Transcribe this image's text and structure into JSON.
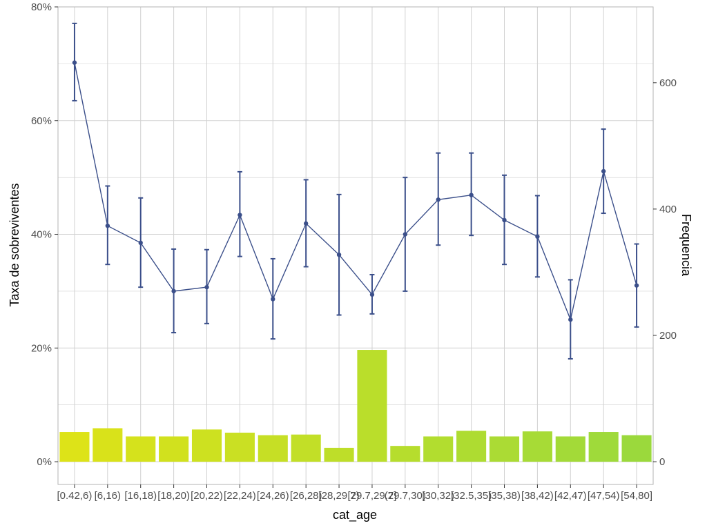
{
  "chart_data": {
    "type": "bar+line",
    "xlabel": "cat_age",
    "ylabel_left": "Taxa de sobreviventes",
    "ylabel_right": "Frequencia",
    "categories": [
      "[0.42,6)",
      "[6,16)",
      "[16,18)",
      "[18,20)",
      "[20,22)",
      "[22,24)",
      "[24,26)",
      "[26,28)",
      "[28,29.7)",
      "[29.7,29.7]",
      "(29.7,30)",
      "[30,32)",
      "[32.5,35)",
      "[35,38)",
      "[38,42)",
      "[42,47)",
      "[47,54)",
      "[54,80]"
    ],
    "left_axis": {
      "ylim": [
        -0.04,
        0.8
      ],
      "ticks": [
        0,
        0.2,
        0.4,
        0.6,
        0.8
      ],
      "tick_labels": [
        "0%",
        "20%",
        "40%",
        "60%",
        "80%"
      ]
    },
    "right_axis": {
      "ylim": [
        -36,
        720
      ],
      "ticks": [
        0,
        200,
        400,
        600
      ],
      "tick_labels": [
        "0",
        "200",
        "400",
        "600"
      ]
    },
    "series": [
      {
        "name": "Frequencia",
        "type": "bar",
        "axis": "right",
        "values": [
          47,
          53,
          40,
          40,
          51,
          46,
          42,
          43,
          22,
          177,
          25,
          40,
          49,
          40,
          48,
          40,
          47,
          42
        ]
      },
      {
        "name": "Taxa de sobreviventes",
        "type": "line",
        "axis": "left",
        "values": [
          0.702,
          0.415,
          0.385,
          0.3,
          0.307,
          0.434,
          0.286,
          0.419,
          0.364,
          0.294,
          0.4,
          0.461,
          0.469,
          0.425,
          0.396,
          0.25,
          0.511,
          0.31
        ],
        "err_low": [
          0.635,
          0.347,
          0.307,
          0.227,
          0.243,
          0.361,
          0.216,
          0.343,
          0.258,
          0.26,
          0.3,
          0.381,
          0.398,
          0.347,
          0.325,
          0.181,
          0.437,
          0.237
        ],
        "err_high": [
          0.771,
          0.485,
          0.464,
          0.374,
          0.373,
          0.51,
          0.357,
          0.496,
          0.47,
          0.329,
          0.5,
          0.543,
          0.543,
          0.504,
          0.468,
          0.32,
          0.585,
          0.383
        ]
      }
    ],
    "grid": true,
    "colors": {
      "line": "#3b4f8a",
      "bar_start": "#dde318",
      "bar_end": "#9bd93c",
      "grid": "#d1d1d1",
      "panel_border": "#b3b3b3"
    }
  }
}
